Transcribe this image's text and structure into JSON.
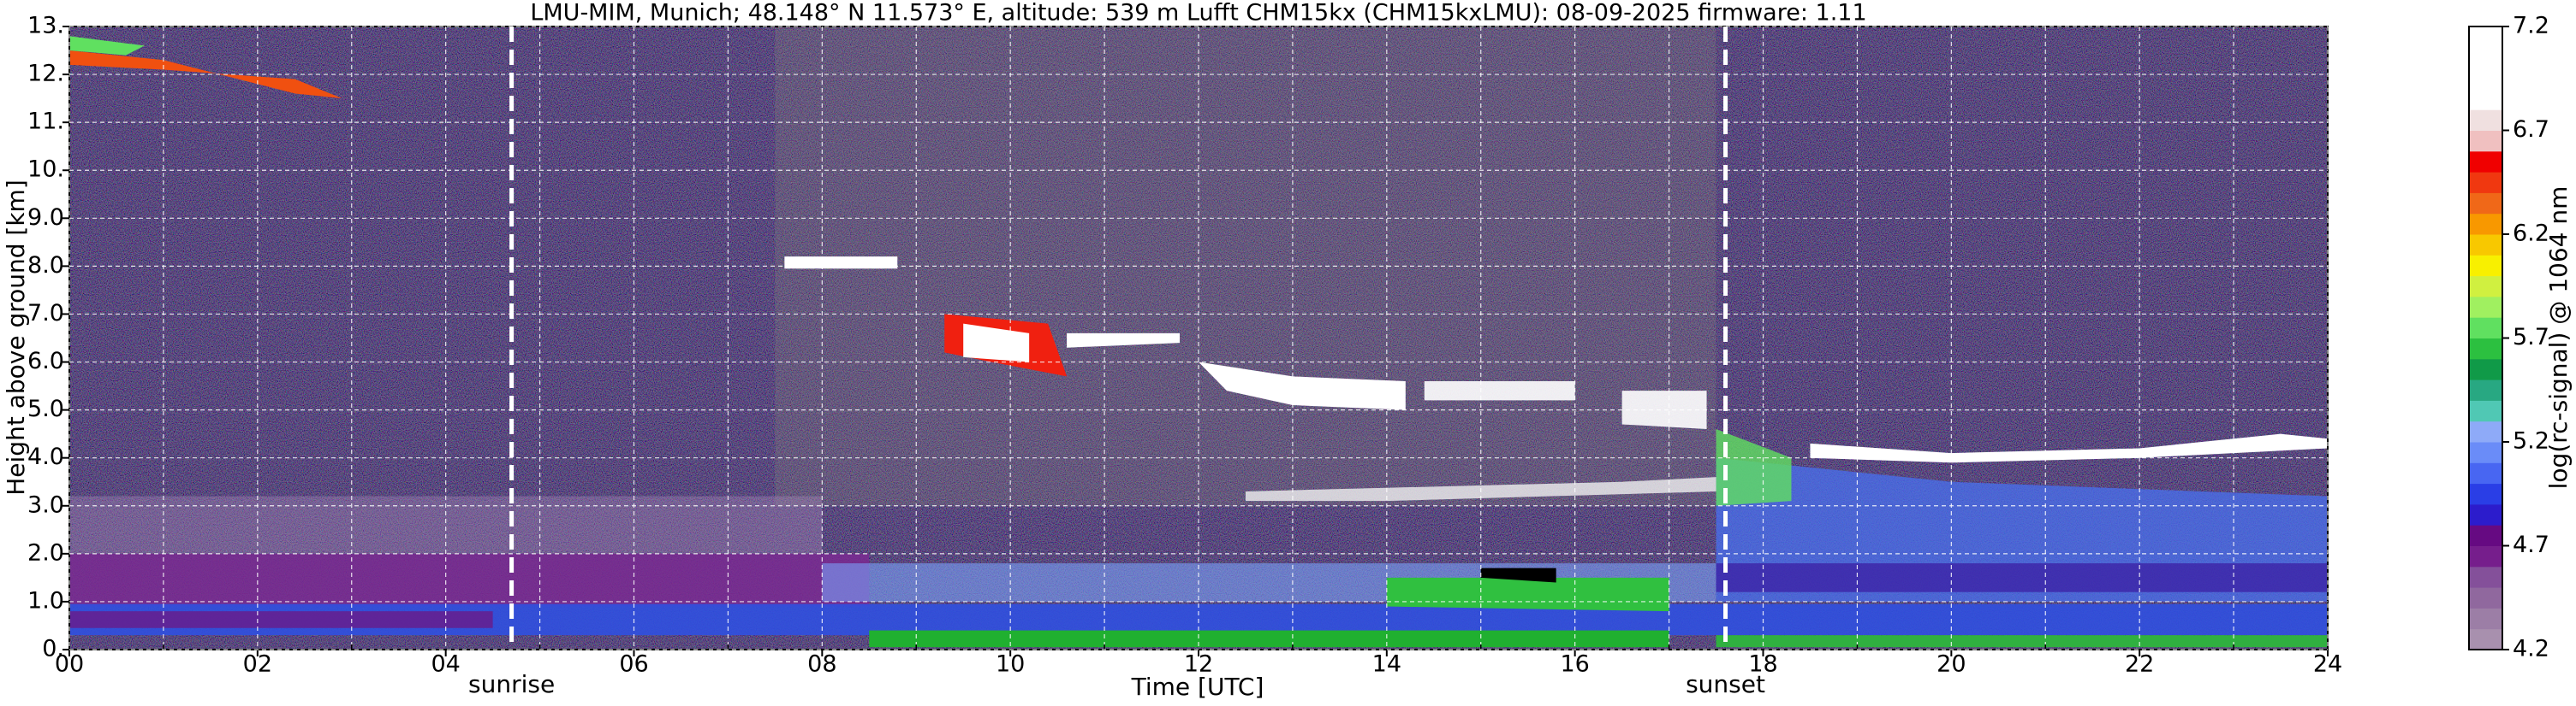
{
  "chart_data": {
    "type": "heatmap",
    "title": "LMU-MIM, Munich; 48.148° N 11.573° E, altitude: 539 m    Lufft CHM15kx (CHM15kxLMU): 08-09-2025    firmware: 1.11",
    "xlabel": "Time [UTC]",
    "ylabel": "Height above ground [km]",
    "xlim": [
      0,
      24
    ],
    "xticks": [
      {
        "value": 0,
        "label": "00"
      },
      {
        "value": 2,
        "label": "02"
      },
      {
        "value": 4,
        "label": "04"
      },
      {
        "value": 6,
        "label": "06"
      },
      {
        "value": 8,
        "label": "08"
      },
      {
        "value": 10,
        "label": "10"
      },
      {
        "value": 12,
        "label": "12"
      },
      {
        "value": 14,
        "label": "14"
      },
      {
        "value": 16,
        "label": "16"
      },
      {
        "value": 18,
        "label": "18"
      },
      {
        "value": 20,
        "label": "20"
      },
      {
        "value": 22,
        "label": "22"
      },
      24
    ],
    "xminorticks": [
      1,
      3,
      5,
      7,
      9,
      11,
      13,
      15,
      17,
      19,
      21,
      23
    ],
    "ylim": [
      0,
      13
    ],
    "yticks": [
      {
        "value": 0,
        "label": "0."
      },
      {
        "value": 1,
        "label": "1.0"
      },
      {
        "value": 2,
        "label": "2.0"
      },
      {
        "value": 3,
        "label": "3.0"
      },
      {
        "value": 4,
        "label": "4.0"
      },
      {
        "value": 5,
        "label": "5.0"
      },
      {
        "value": 6,
        "label": "6.0"
      },
      {
        "value": 7,
        "label": "7.0"
      },
      {
        "value": 8,
        "label": "8.0"
      },
      {
        "value": 9,
        "label": "9.0"
      },
      {
        "value": 10,
        "label": "10."
      },
      {
        "value": 11,
        "label": "11."
      },
      {
        "value": 12,
        "label": "12."
      },
      {
        "value": 13,
        "label": "13."
      }
    ],
    "grid": true,
    "annotations": [
      {
        "text": "sunrise",
        "x": 4.7
      },
      {
        "text": "sunset",
        "x": 17.6
      }
    ],
    "colorbar": {
      "label": "log(rc-signal) @ 1064 nm",
      "clim": [
        4.2,
        7.2
      ],
      "ticks": [
        4.2,
        4.7,
        5.2,
        5.7,
        6.2,
        6.7,
        7.2
      ],
      "colors": [
        "#a890ae",
        "#9c7ea6",
        "#90689e",
        "#84509a",
        "#761e8c",
        "#660a82",
        "#2c1ccc",
        "#2a3ee6",
        "#4866f2",
        "#6a8cf8",
        "#8eaaf8",
        "#50c8b4",
        "#28a882",
        "#109a48",
        "#2cc040",
        "#60e060",
        "#a0f060",
        "#d0f040",
        "#f8f000",
        "#f8c800",
        "#f89800",
        "#f06818",
        "#f03810",
        "#f00000",
        "#f0c0c0",
        "#f0e0e0",
        "#ffffff",
        "#ffffff",
        "#ffffff",
        "#ffffff"
      ]
    }
  }
}
